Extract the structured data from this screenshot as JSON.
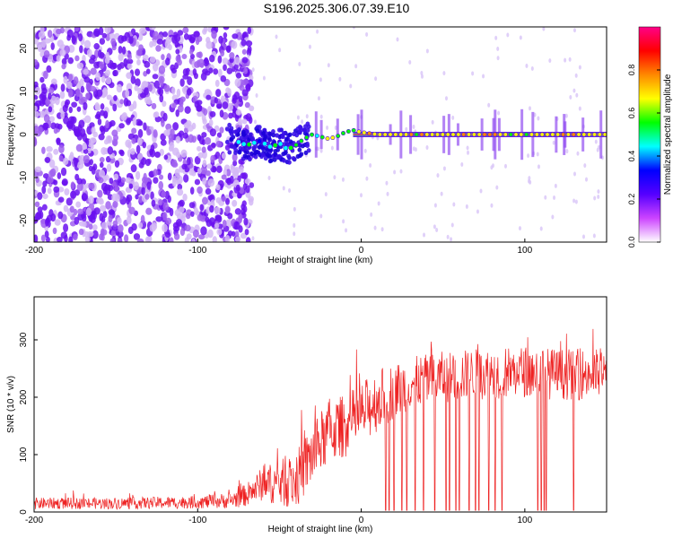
{
  "title": "S196.2025.306.07.39.E10",
  "colors": {
    "snr_line": "#ee2222",
    "axis": "#000000",
    "zero_line": "#888888"
  },
  "chart_data": [
    {
      "type": "heatmap",
      "name": "spectrogram",
      "title": "S196.2025.306.07.39.E10",
      "xlabel": "Height of straight line (km)",
      "ylabel": "Frequency (Hz)",
      "xlim": [
        -200,
        150
      ],
      "ylim": [
        -25,
        25
      ],
      "xticks": [
        -200,
        -100,
        0,
        100
      ],
      "xtick_labels": [
        "-200",
        "-100",
        "0",
        "100"
      ],
      "yticks": [
        -20,
        -10,
        0,
        10,
        20
      ],
      "ytick_labels": [
        "-20",
        "-10",
        "0",
        "10",
        "20"
      ],
      "colorbar": {
        "label": "Normalized spectral amplitude",
        "range": [
          0,
          1
        ],
        "ticks": [
          0,
          0.2,
          0.4,
          0.6,
          0.8
        ],
        "tick_labels": [
          "0.0",
          "0.2",
          "0.4",
          "0.6",
          "0.8"
        ],
        "colormap": [
          "#ffffff",
          "#cc44ff",
          "#5500ff",
          "#0000ff",
          "#00ffff",
          "#00ff00",
          "#ffff00",
          "#ff8800",
          "#ff0000",
          "#ff0088"
        ]
      },
      "noise_region_km": [
        -200,
        -75
      ],
      "track": {
        "x": [
          -80,
          -70,
          -62,
          -55,
          -50,
          -45,
          -40,
          -35,
          -30,
          -25,
          -20,
          -15,
          -10,
          -5,
          0,
          10,
          20,
          40,
          60,
          80,
          100,
          120,
          150
        ],
        "y": [
          -1.0,
          -2.5,
          -1.5,
          -3.0,
          -2.0,
          -3.5,
          -2.5,
          -1.0,
          0.0,
          -0.5,
          -1.0,
          -0.5,
          0.5,
          1.0,
          0.5,
          0.0,
          0.0,
          0.0,
          0.0,
          0.0,
          0.0,
          0.0,
          0.0
        ]
      }
    },
    {
      "type": "line",
      "name": "snr",
      "xlabel": "Height of straight line (km)",
      "ylabel": "SNR (10 * v/v)",
      "xlim": [
        -200,
        150
      ],
      "ylim": [
        0,
        375
      ],
      "xticks": [
        -200,
        -100,
        0,
        100
      ],
      "xtick_labels": [
        "-200",
        "-100",
        "0",
        "100"
      ],
      "yticks": [
        0,
        100,
        200,
        300
      ],
      "ytick_labels": [
        "0",
        "100",
        "200",
        "300"
      ],
      "envelope": {
        "x": [
          -200,
          -150,
          -100,
          -80,
          -70,
          -60,
          -50,
          -40,
          -30,
          -20,
          -10,
          0,
          10,
          20,
          30,
          50,
          70,
          100,
          120,
          150
        ],
        "baseline": [
          15,
          15,
          17,
          20,
          30,
          50,
          50,
          55,
          100,
          140,
          150,
          170,
          195,
          210,
          225,
          235,
          240,
          245,
          240,
          240
        ],
        "spread": [
          10,
          10,
          11,
          14,
          20,
          30,
          40,
          50,
          55,
          55,
          55,
          55,
          55,
          50,
          45,
          45,
          45,
          45,
          45,
          45
        ]
      },
      "dropouts_km": [
        15,
        17,
        20,
        25,
        28,
        33,
        38,
        45,
        52,
        54,
        58,
        60,
        66,
        70,
        72,
        78,
        82,
        86,
        108,
        110,
        112,
        113,
        130
      ]
    }
  ]
}
